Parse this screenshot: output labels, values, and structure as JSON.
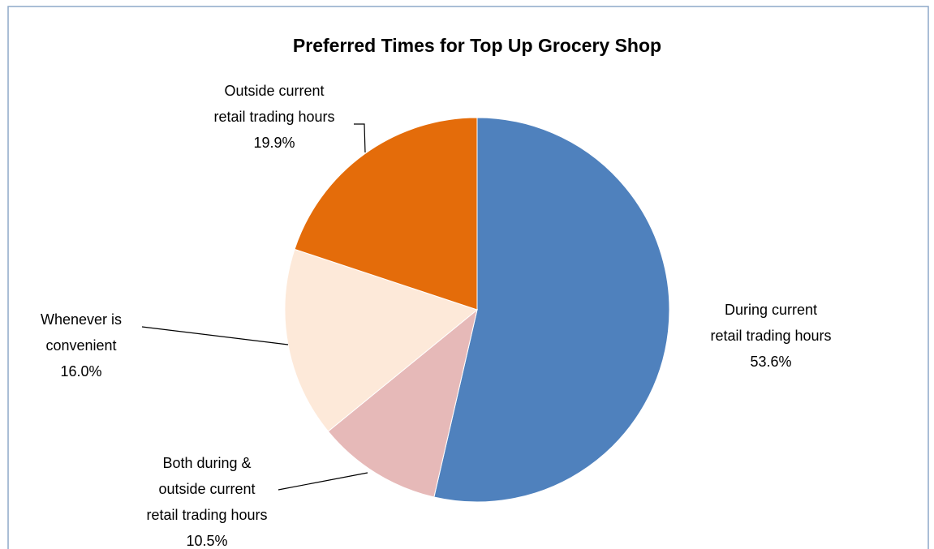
{
  "chart_data": {
    "type": "pie",
    "title": "Preferred Times for Top Up Grocery Shop",
    "categories": [
      "During current retail trading hours",
      "Both during & outside current retail trading hours",
      "Whenever is convenient",
      "Outside current retail trading hours"
    ],
    "values": [
      53.6,
      10.5,
      16.0,
      19.9
    ],
    "value_labels": [
      "53.6%",
      "10.5%",
      "16.0%",
      "19.9%"
    ],
    "colors": [
      "#4f81bd",
      "#e6b9b8",
      "#fde9d9",
      "#e46c0a"
    ]
  }
}
